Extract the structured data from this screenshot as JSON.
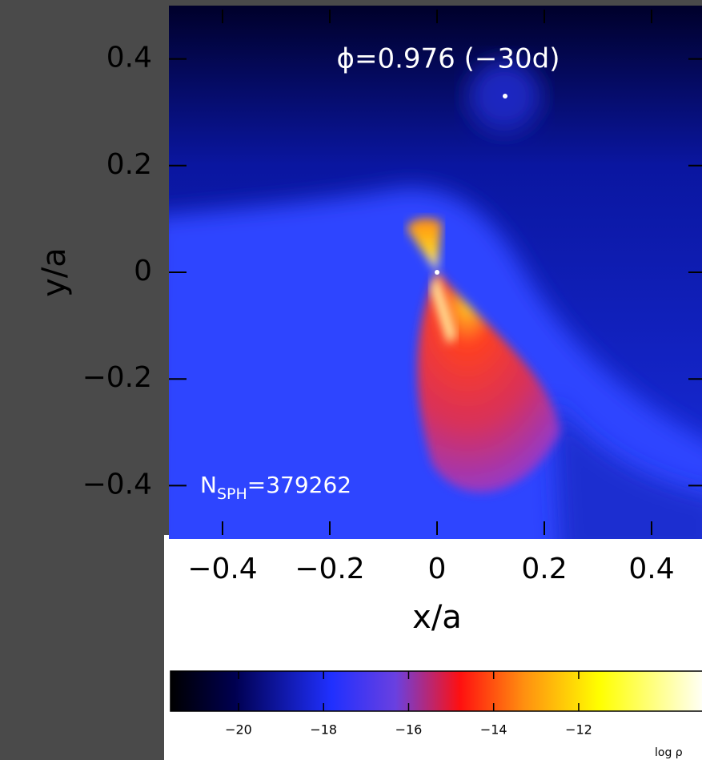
{
  "chart_data": {
    "type": "image",
    "title": "ϕ=0.976 (−30d)",
    "annotation": {
      "base": "N",
      "subscript": "SPH",
      "text": "=379262"
    },
    "x_label": "x/a",
    "y_label": "y/a",
    "xlim": [
      -0.5,
      0.5
    ],
    "ylim": [
      -0.5,
      0.5
    ],
    "xticks": [
      {
        "value": -0.4,
        "label": "−0.4"
      },
      {
        "value": -0.2,
        "label": "−0.2"
      },
      0,
      0.2,
      0.4
    ],
    "yticks": [
      {
        "value": -0.4,
        "label": "−0.4"
      },
      {
        "value": -0.2,
        "label": "−0.2"
      },
      0,
      0.2,
      0.4
    ],
    "colorbar": {
      "label": "log ρ",
      "clim": [
        -21.6,
        -9.1
      ],
      "ticks": [
        {
          "value": -20,
          "label": "−20"
        },
        {
          "value": -18,
          "label": "−18"
        },
        {
          "value": -16,
          "label": "−16"
        },
        {
          "value": -14,
          "label": "−14"
        },
        {
          "value": -12,
          "label": "−12"
        }
      ]
    }
  }
}
